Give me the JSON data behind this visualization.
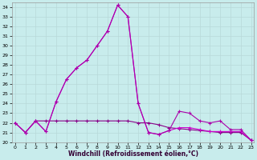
{
  "xlabel": "Windchill (Refroidissement éolien,°C)",
  "background_color": "#c8ecec",
  "grid_color": "#b8d8d8",
  "xlim": [
    -0.3,
    23.3
  ],
  "ylim": [
    20,
    34.5
  ],
  "ytick_vals": [
    20,
    21,
    22,
    23,
    24,
    25,
    26,
    27,
    28,
    29,
    30,
    31,
    32,
    33,
    34
  ],
  "xtick_vals": [
    0,
    1,
    2,
    3,
    4,
    5,
    6,
    7,
    8,
    9,
    10,
    11,
    12,
    13,
    14,
    15,
    16,
    17,
    18,
    19,
    20,
    21,
    22,
    23
  ],
  "s1_x": [
    0,
    1,
    2,
    3,
    4,
    5,
    6,
    7,
    8,
    9,
    10,
    11,
    12,
    13,
    14,
    15,
    16,
    17,
    18,
    19,
    20,
    21,
    22,
    23
  ],
  "s1_y": [
    22.0,
    21.0,
    22.2,
    21.1,
    24.2,
    26.5,
    27.7,
    28.5,
    30.0,
    31.5,
    34.2,
    33.0,
    24.0,
    21.0,
    20.8,
    21.2,
    21.5,
    21.5,
    21.3,
    21.1,
    21.1,
    21.1,
    21.1,
    20.2
  ],
  "s2_x": [
    0,
    1,
    2,
    3,
    4,
    5,
    6,
    7,
    8,
    9,
    10,
    11,
    12,
    13,
    14,
    15,
    16,
    17,
    18,
    19,
    20,
    21,
    22,
    23
  ],
  "s2_y": [
    22.0,
    21.0,
    22.2,
    22.2,
    22.2,
    22.2,
    22.2,
    22.2,
    22.2,
    22.2,
    22.2,
    22.2,
    22.0,
    22.0,
    21.8,
    21.5,
    21.4,
    21.3,
    21.2,
    21.1,
    21.0,
    21.0,
    21.0,
    20.2
  ],
  "s3_x": [
    0,
    1,
    2,
    3,
    4,
    5,
    6,
    7,
    8,
    9,
    10,
    11,
    12,
    13,
    14,
    15,
    16,
    17,
    18,
    19,
    20,
    21,
    22,
    23
  ],
  "s3_y": [
    22.0,
    21.0,
    22.2,
    21.1,
    24.2,
    26.5,
    27.7,
    28.5,
    30.0,
    31.5,
    34.2,
    33.0,
    24.0,
    21.0,
    20.8,
    21.2,
    23.2,
    23.0,
    22.2,
    22.0,
    22.2,
    21.3,
    21.3,
    20.2
  ],
  "lc1": "#cc00cc",
  "lc2": "#880088",
  "lc3": "#aa00aa"
}
